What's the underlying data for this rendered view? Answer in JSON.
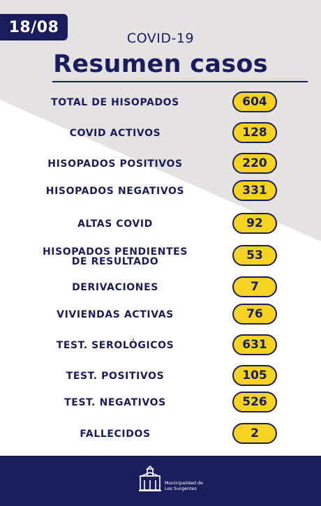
{
  "date": "18/08",
  "subtitle": "COVID-19",
  "title": "Resumen casos",
  "rows": [
    {
      "label": "TOTAL DE HISOPADOS",
      "value": "604"
    },
    {
      "label": "COVID ACTIVOS",
      "value": "128"
    },
    {
      "label": "HISOPADOS POSITIVOS",
      "value": "220"
    },
    {
      "label": "HISOPADOS NEGATIVOS",
      "value": "331"
    },
    {
      "label": "ALTAS COVID",
      "value": "92"
    },
    {
      "label": "HISOPADOS PENDIENTES",
      "label2": "DE RESULTADO",
      "value": "53"
    },
    {
      "label": "DERIVACIONES",
      "value": "7"
    },
    {
      "label": "VIVIENDAS ACTIVAS",
      "value": "76"
    },
    {
      "label": "TEST. SEROLÓGICOS",
      "value": "631"
    },
    {
      "label": "TEST. POSITIVOS",
      "value": "105"
    },
    {
      "label": "TEST. NEGATIVOS",
      "value": "526"
    },
    {
      "label": "FALLECIDOS",
      "value": "2"
    }
  ],
  "footer": {
    "org_line1": "Municipalidad de",
    "org_line2": "Los Surgentes",
    "logo_icon": "municipal-building-logo-icon"
  },
  "colors": {
    "navy": "#1a1d5c",
    "yellow": "#f6d320",
    "gray": "#e4e2e2"
  }
}
